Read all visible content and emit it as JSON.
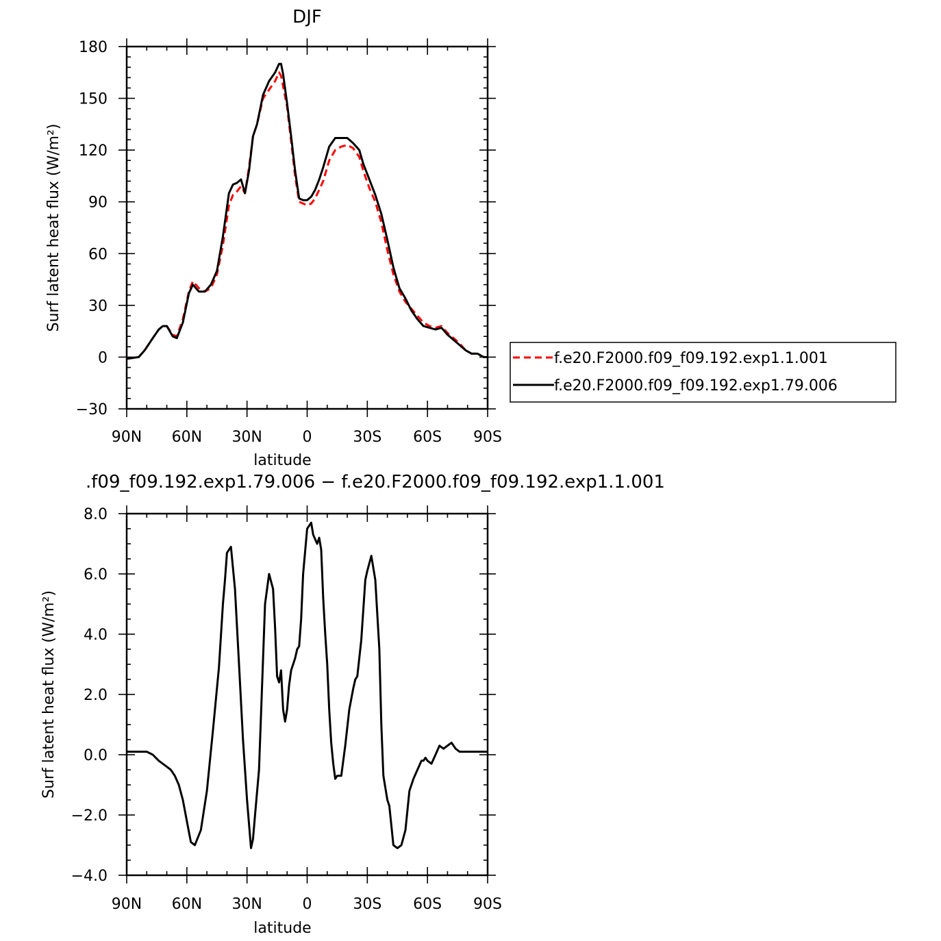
{
  "chart_data": [
    {
      "type": "line",
      "title": "DJF",
      "xlabel": "latitude",
      "ylabel": "Surf latent heat flux (W/m²)",
      "xlim": [
        90,
        -90
      ],
      "ylim": [
        -30,
        180
      ],
      "xticks": [
        90,
        60,
        30,
        0,
        -30,
        -60,
        -90
      ],
      "xtick_labels": [
        "90N",
        "60N",
        "30N",
        "0",
        "30S",
        "60S",
        "90S"
      ],
      "yticks": [
        -30,
        0,
        30,
        60,
        90,
        120,
        150,
        180
      ],
      "ytick_labels": [
        "−30",
        "0",
        "30",
        "60",
        "90",
        "120",
        "150",
        "180"
      ],
      "legend": "right",
      "series": [
        {
          "name": "f.e20.F2000.f09_f09.192.exp1.1.001",
          "color": "#ff0000",
          "dash": "dashed",
          "x": [
            90,
            84,
            81,
            77,
            74,
            72,
            70,
            67,
            65,
            62,
            59,
            57,
            54,
            51,
            48,
            45,
            42,
            39,
            37,
            35,
            33,
            31,
            29,
            27,
            25,
            22,
            19,
            16,
            14,
            13,
            12,
            10,
            8,
            6,
            4,
            2,
            0,
            -2,
            -4,
            -6,
            -8,
            -11,
            -14,
            -17,
            -20,
            -23,
            -26,
            -28,
            -31,
            -34,
            -37,
            -40,
            -43,
            -46,
            -49,
            -52,
            -55,
            -58,
            -61,
            -64,
            -67,
            -70,
            -73,
            -76,
            -79,
            -82,
            -85,
            -88,
            -90
          ],
          "y": [
            -1,
            0,
            4,
            11,
            16,
            18,
            18,
            13,
            12,
            22,
            38,
            44,
            40,
            38,
            40,
            48,
            65,
            88,
            94,
            96,
            99,
            95,
            110,
            128,
            135,
            150,
            155,
            160,
            165,
            163,
            157,
            145,
            125,
            105,
            90,
            89,
            88,
            89,
            92,
            97,
            102,
            114,
            120,
            122,
            123,
            121,
            116,
            108,
            98,
            90,
            78,
            62,
            48,
            38,
            32,
            28,
            24,
            20,
            18,
            17,
            18,
            14,
            11,
            8,
            4,
            2,
            2,
            0,
            0
          ]
        },
        {
          "name": "f.e20.F2000.f09_f09.192.exp1.79.006",
          "color": "#000000",
          "dash": "solid",
          "x": [
            90,
            84,
            81,
            77,
            74,
            72,
            70,
            67,
            65,
            62,
            59,
            57,
            54,
            51,
            48,
            45,
            42,
            39,
            37,
            35,
            33,
            31,
            29,
            27,
            25,
            22,
            19,
            16,
            14,
            13,
            12,
            10,
            8,
            6,
            4,
            2,
            0,
            -2,
            -4,
            -6,
            -8,
            -11,
            -14,
            -17,
            -20,
            -23,
            -26,
            -28,
            -31,
            -34,
            -37,
            -40,
            -43,
            -46,
            -49,
            -52,
            -55,
            -58,
            -61,
            -64,
            -67,
            -70,
            -73,
            -76,
            -79,
            -82,
            -85,
            -88,
            -90
          ],
          "y": [
            -1,
            0,
            4,
            11,
            16,
            18,
            18,
            12,
            11,
            20,
            37,
            42,
            38,
            38,
            42,
            50,
            70,
            95,
            100,
            101,
            103,
            95,
            108,
            128,
            135,
            152,
            160,
            165,
            170,
            170,
            164,
            147,
            128,
            108,
            92,
            91,
            91,
            93,
            97,
            103,
            110,
            122,
            127,
            127,
            127,
            124,
            120,
            112,
            103,
            94,
            83,
            68,
            52,
            40,
            34,
            27,
            22,
            18,
            17,
            16,
            17,
            13,
            10,
            7,
            4,
            2,
            2,
            0,
            0
          ]
        }
      ]
    },
    {
      "type": "line",
      "title": ".f09_f09.192.exp1.79.006 − f.e20.F2000.f09_f09.192.exp1.1.001",
      "xlabel": "latitude",
      "ylabel": "Surf latent heat flux (W/m²)",
      "xlim": [
        90,
        -90
      ],
      "ylim": [
        -4,
        8
      ],
      "xticks": [
        90,
        60,
        30,
        0,
        -30,
        -60,
        -90
      ],
      "xtick_labels": [
        "90N",
        "60N",
        "30N",
        "0",
        "30S",
        "60S",
        "90S"
      ],
      "yticks": [
        -4,
        -2,
        0,
        2,
        4,
        6,
        8
      ],
      "ytick_labels": [
        "−4.0",
        "−2.0",
        "0.0",
        "2.0",
        "4.0",
        "6.0",
        "8.0"
      ],
      "series": [
        {
          "color": "#000000",
          "dash": "solid",
          "x": [
            90,
            88,
            85,
            82,
            80,
            77,
            74,
            72,
            70,
            68,
            66,
            64,
            62,
            60,
            58,
            56,
            53,
            50,
            47,
            44,
            42,
            41,
            40,
            38,
            36,
            34,
            32,
            30,
            28,
            27,
            26,
            24,
            21,
            19,
            17,
            16,
            15,
            14,
            13,
            12,
            11,
            10,
            9,
            8,
            7,
            6,
            5,
            4,
            3,
            2,
            0,
            -2,
            -3,
            -5,
            -6,
            -7,
            -8,
            -9,
            -10,
            -11,
            -12,
            -13,
            -14,
            -15,
            -17,
            -19,
            -21,
            -23,
            -24,
            -25,
            -27,
            -29,
            -30,
            -32,
            -34,
            -36,
            -37,
            -38,
            -40,
            -41,
            -43,
            -45,
            -47,
            -49,
            -51,
            -53,
            -55,
            -57,
            -58,
            -59,
            -60,
            -62,
            -64,
            -66,
            -68,
            -70,
            -72,
            -74,
            -76,
            -78,
            -79,
            -80,
            -82,
            -84,
            -86,
            -88,
            -90
          ],
          "y": [
            0.1,
            0.1,
            0.1,
            0.1,
            0.1,
            0.0,
            -0.2,
            -0.3,
            -0.4,
            -0.5,
            -0.7,
            -1.0,
            -1.5,
            -2.2,
            -2.9,
            -3.0,
            -2.5,
            -1.2,
            0.8,
            2.9,
            5.0,
            5.8,
            6.7,
            6.9,
            5.5,
            3.0,
            0.5,
            -1.5,
            -3.1,
            -2.8,
            -2.0,
            -0.5,
            5.0,
            6.0,
            5.5,
            4.2,
            2.6,
            2.4,
            2.8,
            1.5,
            1.1,
            1.5,
            2.3,
            2.8,
            3.0,
            3.2,
            3.5,
            3.6,
            4.5,
            6.0,
            7.5,
            7.7,
            7.3,
            7.0,
            7.2,
            6.8,
            5.2,
            4.0,
            3.0,
            1.5,
            0.4,
            -0.3,
            -0.8,
            -0.7,
            -0.7,
            0.3,
            1.5,
            2.2,
            2.5,
            2.6,
            3.8,
            5.8,
            6.1,
            6.6,
            5.8,
            3.5,
            1.0,
            -0.7,
            -1.5,
            -1.7,
            -3.0,
            -3.1,
            -3.0,
            -2.5,
            -1.2,
            -0.8,
            -0.5,
            -0.2,
            -0.2,
            -0.1,
            -0.2,
            -0.3,
            0.0,
            0.3,
            0.2,
            0.3,
            0.4,
            0.2,
            0.1,
            0.1,
            0.1,
            0.1,
            0.1,
            0.1,
            0.1,
            0.1,
            0.1
          ]
        }
      ]
    }
  ]
}
